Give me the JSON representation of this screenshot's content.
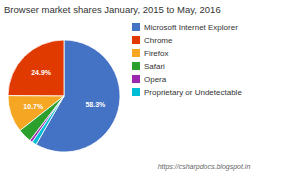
{
  "chart_data": {
    "type": "pie",
    "title": "Browser market shares January, 2015 to May, 2016",
    "categories": [
      "Microsoft Internet Explorer",
      "Chrome",
      "Firefox",
      "Safari",
      "Opera",
      "Proprietary or Undetectable"
    ],
    "values": [
      58.3,
      24.9,
      10.7,
      4.0,
      0.8,
      1.3
    ],
    "colors": [
      "#4472C4",
      "#E03A00",
      "#F5A623",
      "#2CA02C",
      "#9C27B0",
      "#00BCD4"
    ],
    "data_labels": true,
    "value_labels": [
      "58.3%",
      "24.9%",
      "10.7%",
      null,
      null,
      null
    ],
    "annotations": [
      "https://csharpdocs.blogspot.in"
    ],
    "legend": "right"
  }
}
